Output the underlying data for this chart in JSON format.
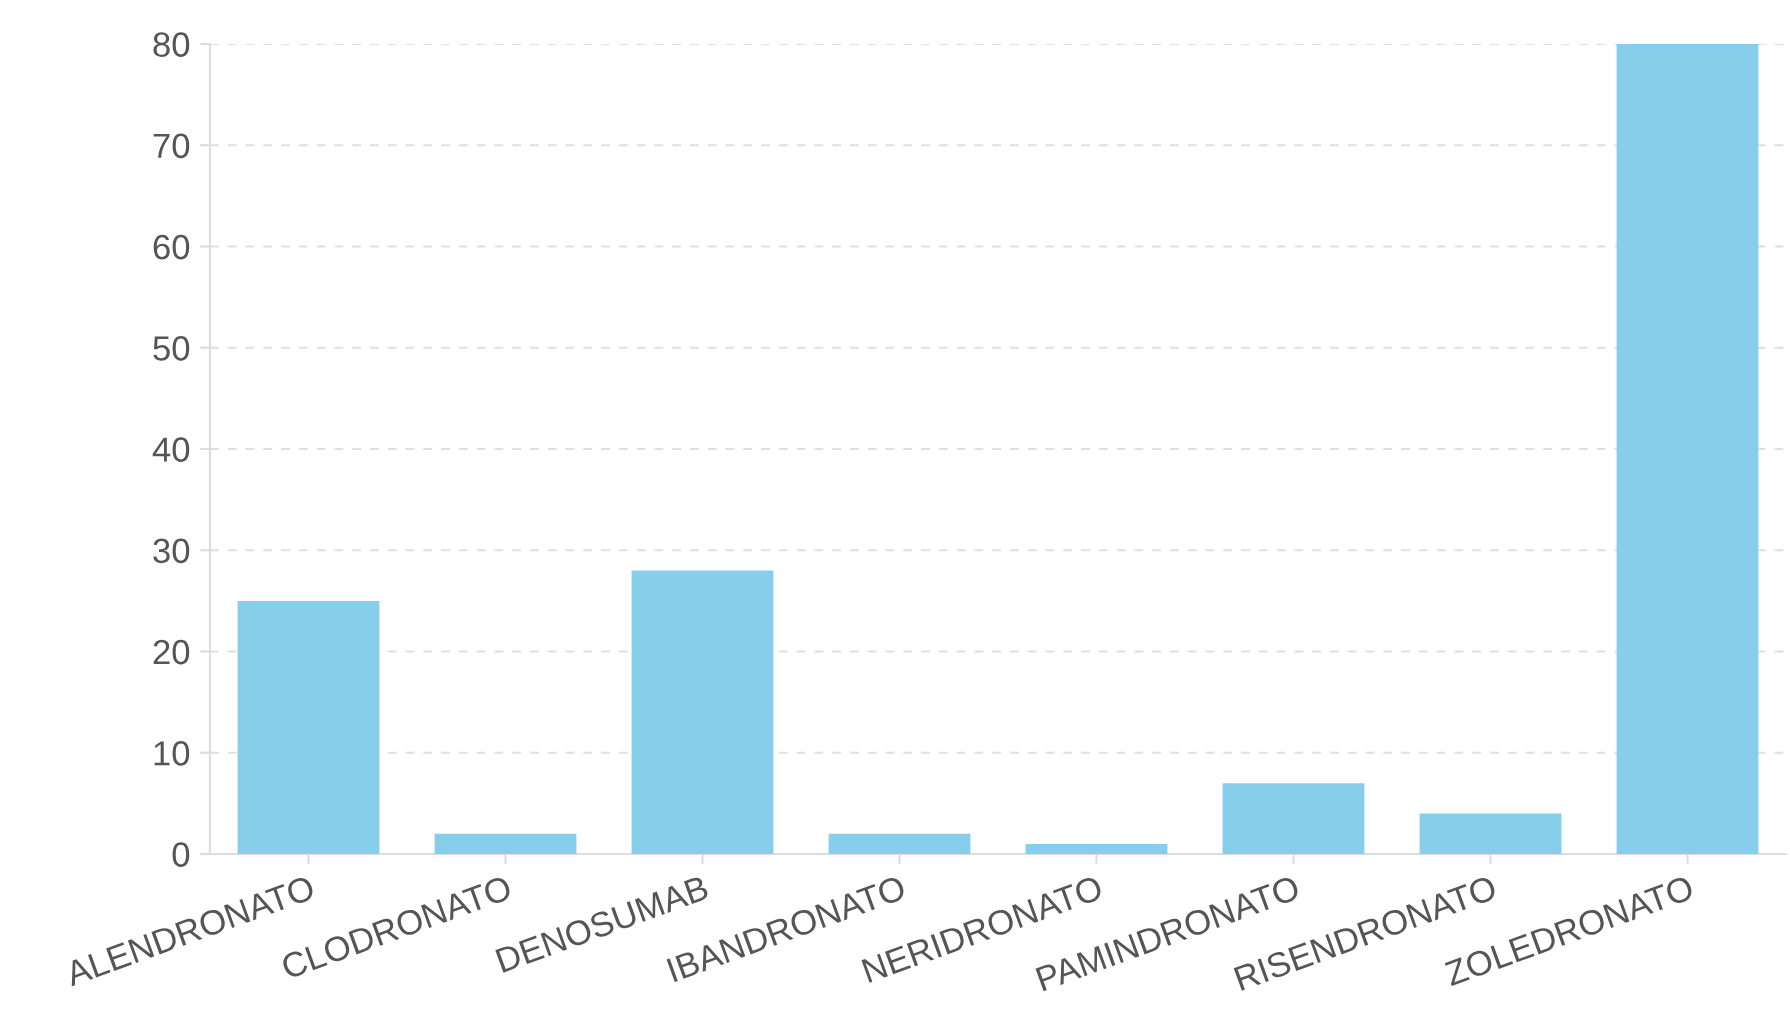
{
  "chart_data": {
    "type": "bar",
    "categories": [
      "ALENDRONATO",
      "CLODRONATO",
      "DENOSUMAB",
      "IBANDRONATO",
      "NERIDRONATO",
      "PAMINDRONATO",
      "RISENDRONATO",
      "ZOLEDRONATO"
    ],
    "values": [
      25,
      2,
      28,
      2,
      1,
      7,
      4,
      80
    ],
    "color": "#87ceeb",
    "ylim": [
      0,
      80
    ],
    "yticks": [
      0,
      10,
      20,
      30,
      40,
      50,
      60,
      70,
      80
    ],
    "grid": "y",
    "legend": false
  }
}
